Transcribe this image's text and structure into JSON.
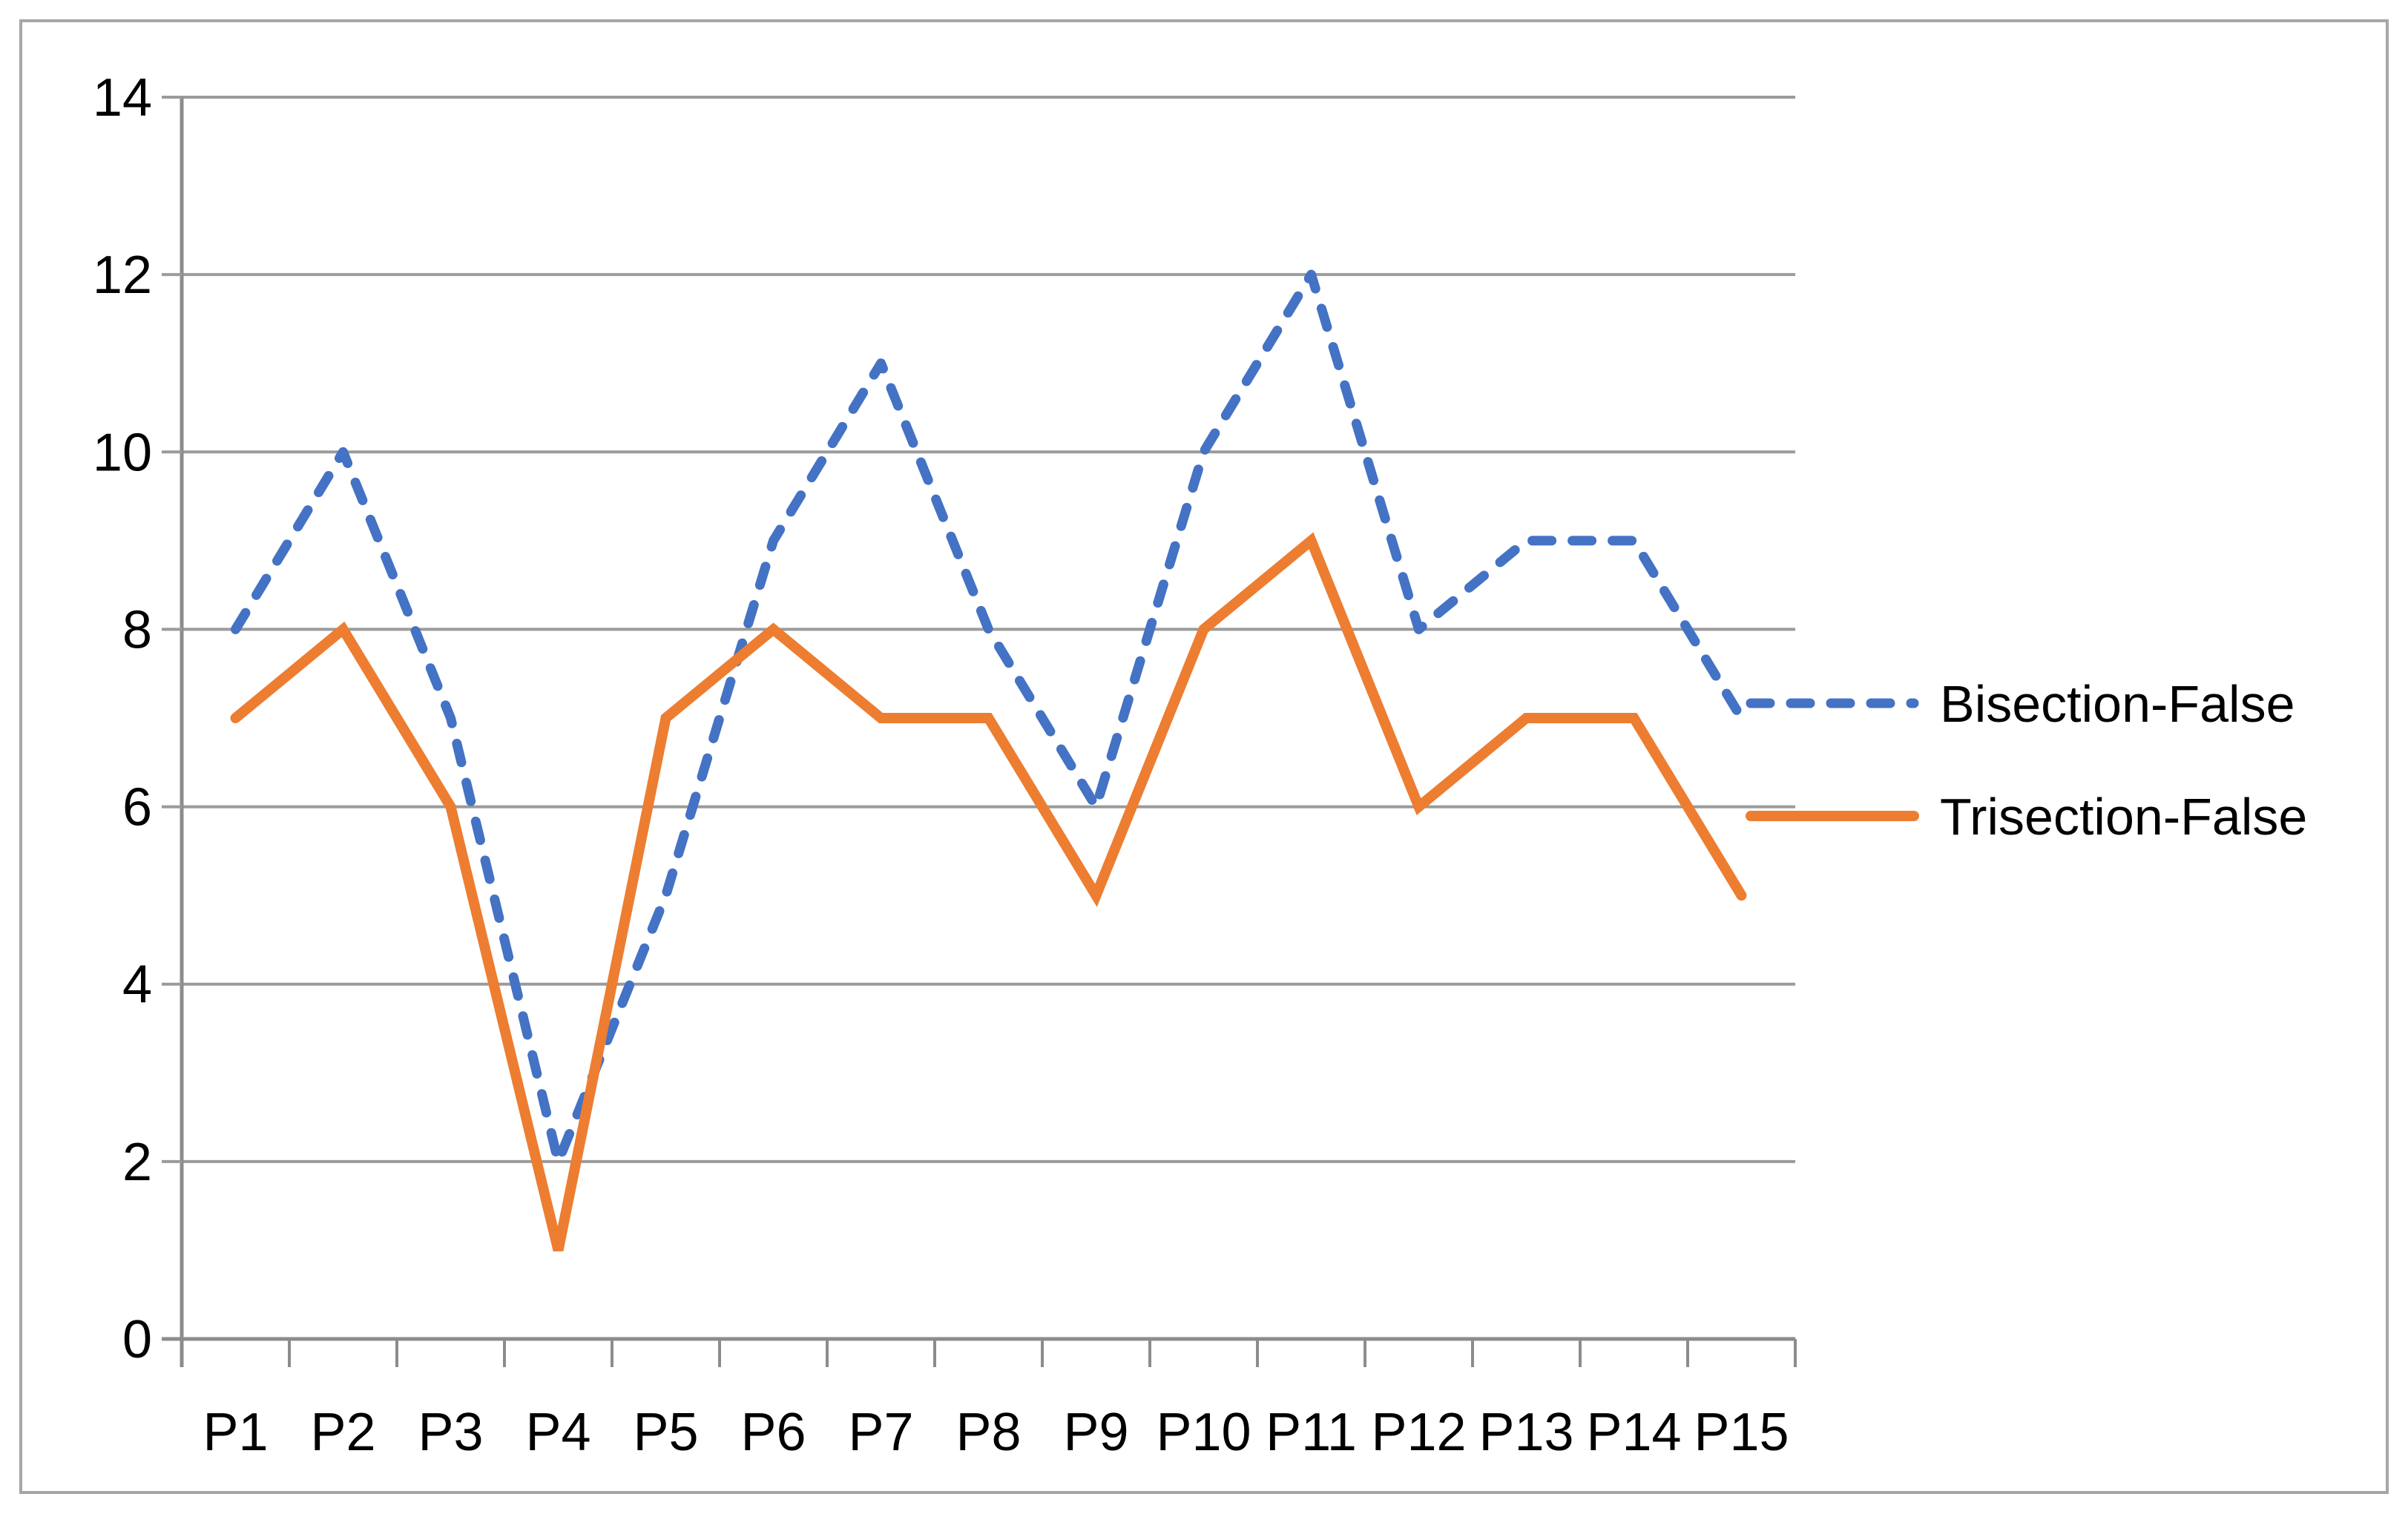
{
  "chart_data": {
    "type": "line",
    "title": "",
    "xlabel": "",
    "ylabel": "",
    "categories": [
      "P1",
      "P2",
      "P3",
      "P4",
      "P5",
      "P6",
      "P7",
      "P8",
      "P9",
      "P10",
      "P11",
      "P12",
      "P13",
      "P14",
      "P15"
    ],
    "series": [
      {
        "name": "Bisection-False",
        "values": [
          8,
          10,
          7,
          2,
          5,
          9,
          11,
          8,
          6,
          10,
          12,
          8,
          9,
          9,
          7
        ],
        "color": "#4472C4",
        "style": "dashed"
      },
      {
        "name": "Trisection-False",
        "values": [
          7,
          8,
          6,
          1,
          7,
          8,
          7,
          7,
          5,
          8,
          9,
          6,
          7,
          7,
          5
        ],
        "color": "#ED7D31",
        "style": "solid"
      }
    ],
    "ylim": [
      0,
      14
    ],
    "ytick_step": 2,
    "ytick_labels": [
      "0",
      "2",
      "4",
      "6",
      "8",
      "10",
      "12",
      "14"
    ],
    "grid": true,
    "legend_position": "right-middle",
    "colors": {
      "gridline": "#9B9B9B",
      "axis": "#8C8C8C",
      "border": "#A6A6A6",
      "background": "#FFFFFF",
      "text": "#000000"
    }
  }
}
